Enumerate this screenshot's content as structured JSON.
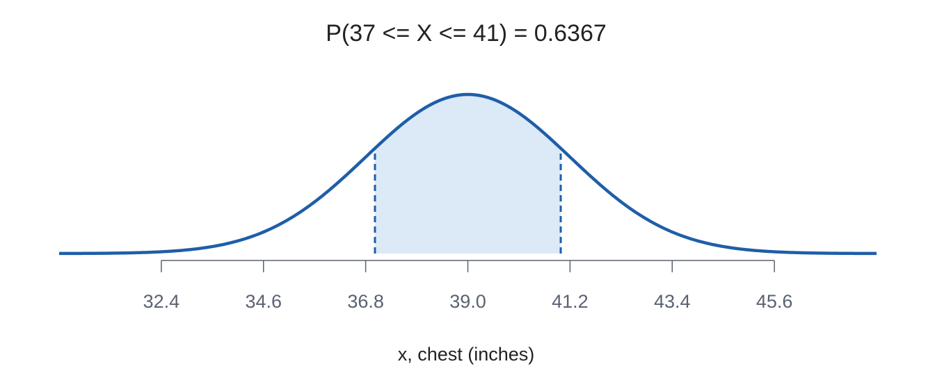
{
  "chart_data": {
    "type": "normal",
    "title": "P(37 <= X <= 41) = 0.6367",
    "x_label": "x, chest (inches)",
    "mean": 39,
    "sd": 2.2,
    "shade": [
      37,
      41
    ],
    "xlim": [
      30.2,
      47.8
    ],
    "xticks": [
      32.4,
      34.6,
      36.8,
      {
        "value": 39,
        "label": "39.0"
      },
      41.2,
      43.4,
      45.6
    ],
    "color": "#1f5ea8",
    "shade_color": "#dce9f6"
  }
}
